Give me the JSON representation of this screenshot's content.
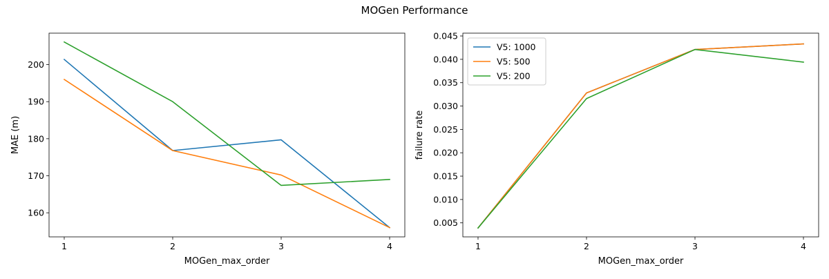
{
  "figure_title": "MOGen Performance",
  "chart_data": [
    {
      "type": "line",
      "title": "",
      "xlabel": "MOGen_max_order",
      "ylabel": "MAE (m)",
      "x": [
        1,
        2,
        3,
        4
      ],
      "xticks": [
        1,
        2,
        3,
        4
      ],
      "xticklabels": [
        "1",
        "2",
        "3",
        "4"
      ],
      "yticks": [
        160,
        170,
        180,
        190,
        200
      ],
      "yticklabels": [
        "160",
        "170",
        "180",
        "190",
        "200"
      ],
      "xlim": [
        0.86,
        4.14
      ],
      "ylim": [
        153.5,
        208.5
      ],
      "grid": false,
      "legend": null,
      "series": [
        {
          "name": "V5: 1000",
          "color": "#1f77b4",
          "values": [
            201.4,
            176.8,
            179.7,
            156.0
          ]
        },
        {
          "name": "V5: 500",
          "color": "#ff7f0e",
          "values": [
            196.0,
            176.8,
            170.2,
            156.0
          ]
        },
        {
          "name": "V5: 200",
          "color": "#2ca02c",
          "values": [
            206.1,
            190.0,
            167.4,
            169.0
          ]
        }
      ]
    },
    {
      "type": "line",
      "title": "",
      "xlabel": "MOGen_max_order",
      "ylabel": "failure rate",
      "x": [
        1,
        2,
        3,
        4
      ],
      "xticks": [
        1,
        2,
        3,
        4
      ],
      "xticklabels": [
        "1",
        "2",
        "3",
        "4"
      ],
      "yticks": [
        0.005,
        0.01,
        0.015,
        0.02,
        0.025,
        0.03,
        0.035,
        0.04,
        0.045
      ],
      "yticklabels": [
        "0.005",
        "0.010",
        "0.015",
        "0.020",
        "0.025",
        "0.030",
        "0.035",
        "0.040",
        "0.045"
      ],
      "xlim": [
        0.86,
        4.14
      ],
      "ylim": [
        0.002,
        0.0456
      ],
      "grid": false,
      "legend": "top-left",
      "series": [
        {
          "name": "V5: 1000",
          "color": "#1f77b4",
          "values": [
            0.0039,
            0.0328,
            0.0421,
            0.0433
          ]
        },
        {
          "name": "V5: 500",
          "color": "#ff7f0e",
          "values": [
            0.0039,
            0.0328,
            0.0421,
            0.0433
          ]
        },
        {
          "name": "V5: 200",
          "color": "#2ca02c",
          "values": [
            0.0039,
            0.0316,
            0.0421,
            0.0394
          ]
        }
      ]
    }
  ]
}
